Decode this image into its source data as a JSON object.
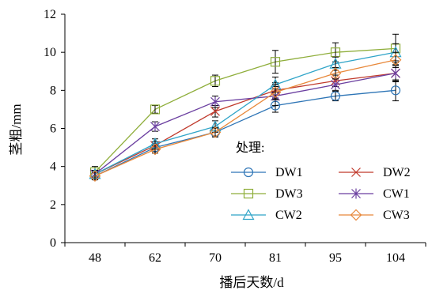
{
  "chart_data": {
    "type": "line",
    "xlabel": "播后天数/d",
    "ylabel": "茎粗/mm",
    "categories": [
      "48",
      "62",
      "70",
      "81",
      "95",
      "104"
    ],
    "ylim": [
      0,
      12
    ],
    "yticks": [
      0,
      2,
      4,
      6,
      8,
      10,
      12
    ],
    "grid": false,
    "error_bars": true,
    "legend": {
      "title": "处理:",
      "position": "lower-right",
      "columns": 2
    },
    "series": [
      {
        "name": "DW1",
        "color": "#2E75B6",
        "marker": "circle",
        "values": [
          3.5,
          5.0,
          5.8,
          7.2,
          7.7,
          8.0
        ],
        "errors": [
          0.2,
          0.2,
          0.2,
          0.35,
          0.25,
          0.55
        ]
      },
      {
        "name": "DW2",
        "color": "#C0392B",
        "marker": "x",
        "values": [
          3.6,
          5.1,
          6.9,
          8.0,
          8.5,
          8.9
        ],
        "errors": [
          0.2,
          0.2,
          0.3,
          0.4,
          0.3,
          0.45
        ]
      },
      {
        "name": "DW3",
        "color": "#8FAE3B",
        "marker": "square",
        "values": [
          3.7,
          7.0,
          8.5,
          9.5,
          10.0,
          10.2
        ],
        "errors": [
          0.3,
          0.2,
          0.3,
          0.6,
          0.5,
          0.75
        ]
      },
      {
        "name": "CW1",
        "color": "#6B3FA0",
        "marker": "asterisk",
        "values": [
          3.6,
          6.1,
          7.4,
          7.7,
          8.3,
          8.9
        ],
        "errors": [
          0.2,
          0.25,
          0.3,
          0.5,
          0.3,
          0.4
        ]
      },
      {
        "name": "CW2",
        "color": "#2FA4C8",
        "marker": "triangle",
        "values": [
          3.6,
          5.2,
          6.1,
          8.3,
          9.4,
          10.0
        ],
        "errors": [
          0.2,
          0.25,
          0.3,
          0.4,
          0.35,
          0.45
        ]
      },
      {
        "name": "CW3",
        "color": "#E8883A",
        "marker": "diamond",
        "values": [
          3.5,
          4.9,
          5.8,
          7.9,
          8.9,
          9.6
        ],
        "errors": [
          0.2,
          0.2,
          0.25,
          0.4,
          0.3,
          0.4
        ]
      }
    ]
  }
}
